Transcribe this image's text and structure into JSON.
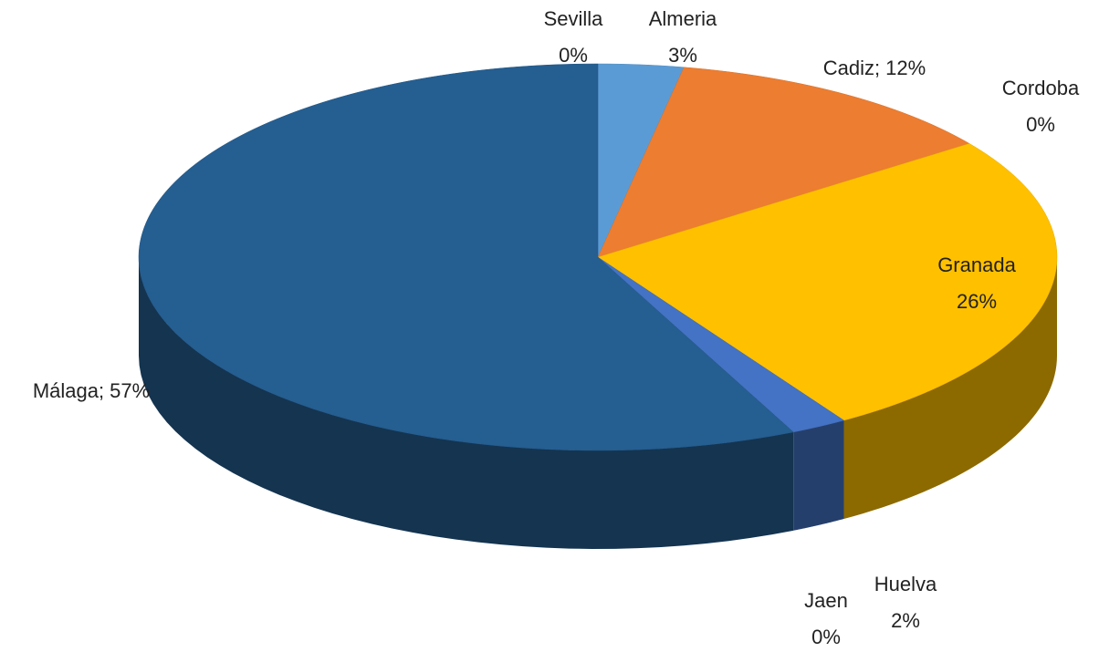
{
  "chart_data": {
    "type": "pie",
    "categories": [
      "Almeria",
      "Cadiz;",
      "Cordoba",
      "Granada",
      "Huelva",
      "Jaen",
      "Málaga;",
      "Sevilla"
    ],
    "values": [
      3,
      12,
      0,
      26,
      2,
      0,
      57,
      0
    ],
    "value_labels": [
      "3%",
      "12%",
      "0%",
      "26%",
      "2%",
      "0%",
      "57%",
      "0%"
    ],
    "colors": [
      "#5b9bd5",
      "#ed7d31",
      "#a5a5a5",
      "#ffc000",
      "#4472c4",
      "#70ad47",
      "#255e91",
      "#9e480e"
    ]
  }
}
